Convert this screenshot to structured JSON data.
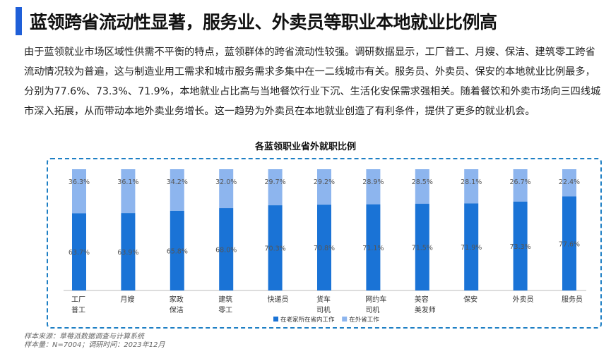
{
  "header": {
    "title": "蓝领跨省流动性显著，服务业、外卖员等职业本地就业比例高"
  },
  "body_text": "由于蓝领就业市场区域性供需不平衡的特点，蓝领群体的跨省流动性较强。调研数据显示，工厂普工、月嫂、保洁、建筑零工跨省流动情况较为普遍，这与制造业用工需求和城市服务需求多集中在一二线城市有关。服务员、外卖员、保安的本地就业比例最多，分别为77.6%、73.3%、71.9%，本地就业占比高与当地餐饮行业下沉、生活化安保需求强相关。随着餐饮和外卖市场向三四线城市深入拓展，从而带动本地外卖业务增长。这一趋势为外卖员在本地就业创造了有利条件，提供了更多的就业机会。",
  "chart_data": {
    "type": "bar",
    "stacked": true,
    "percent_stacked": true,
    "title": "各蓝领职业省外就职比例",
    "categories": [
      [
        "工厂",
        "普工"
      ],
      [
        "月嫂"
      ],
      [
        "家政",
        "保洁"
      ],
      [
        "建筑",
        "零工"
      ],
      [
        "快递员"
      ],
      [
        "货车",
        "司机"
      ],
      [
        "网约车",
        "司机"
      ],
      [
        "美容",
        "美发师"
      ],
      [
        "保安"
      ],
      [
        "外卖员"
      ],
      [
        "服务员"
      ]
    ],
    "series": [
      {
        "name": "在老家所在省内工作",
        "color": "#1a73d6",
        "values": [
          63.7,
          63.9,
          65.8,
          68.0,
          70.3,
          70.8,
          71.1,
          71.5,
          71.9,
          73.3,
          77.6
        ],
        "labels": [
          "63.7%",
          "63.9%",
          "65.8%",
          "68.0%",
          "70.3%",
          "70.8%",
          "71.1%",
          "71.5%",
          "71.9%",
          "73.3%",
          "77.6%"
        ]
      },
      {
        "name": "在外省工作",
        "color": "#8db5ee",
        "values": [
          36.3,
          36.1,
          34.2,
          32.0,
          29.7,
          29.2,
          28.9,
          28.5,
          28.1,
          26.7,
          22.4
        ],
        "labels": [
          "36.3%",
          "36.1%",
          "34.2%",
          "32.0%",
          "29.7%",
          "29.2%",
          "28.9%",
          "28.5%",
          "28.1%",
          "26.7%",
          "22.4%"
        ]
      }
    ],
    "ylim": [
      0,
      100
    ],
    "legend_position": "bottom"
  },
  "footer": {
    "source": "样本来源：草莓派数据调查与计算系统",
    "sample": "样本量：N=7004；调研时间：2023年12月"
  }
}
